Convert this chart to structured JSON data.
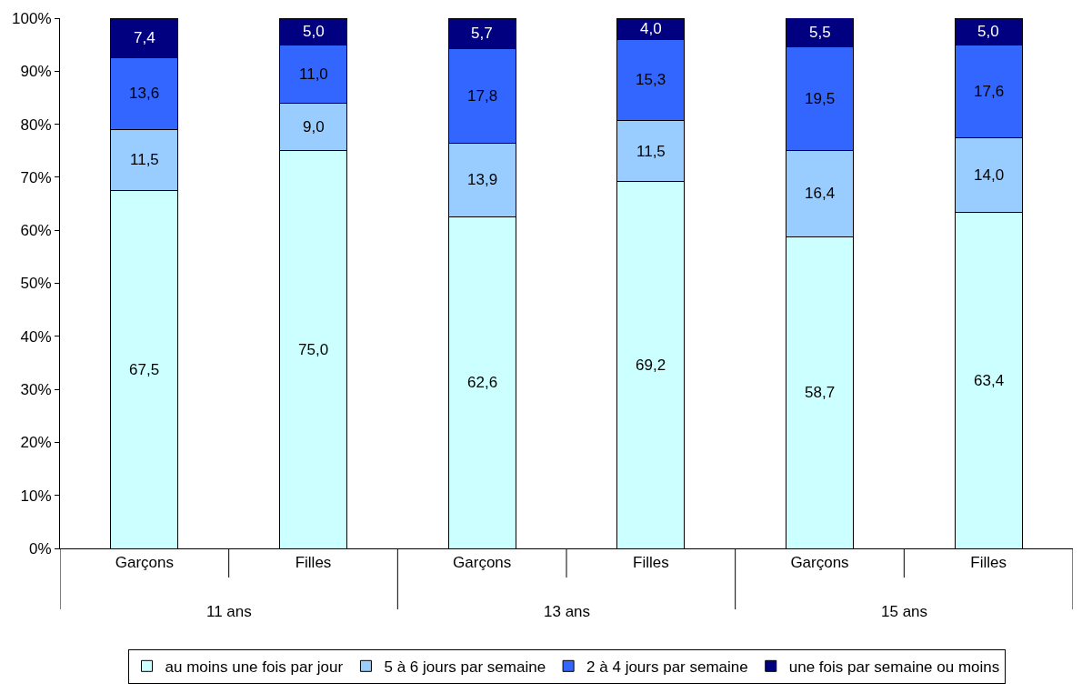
{
  "chart_data": {
    "type": "bar",
    "stacked": true,
    "categories": [
      "Garçons",
      "Filles",
      "Garçons",
      "Filles",
      "Garçons",
      "Filles"
    ],
    "series": [
      {
        "name": "au moins une fois par jour",
        "color": "#ccffff",
        "values": [
          67.5,
          75.0,
          62.6,
          69.2,
          58.7,
          63.4
        ],
        "value_labels": [
          "67,5",
          "75,0",
          "62,6",
          "69,2",
          "58,7",
          "63,4"
        ]
      },
      {
        "name": "5 à 6 jours par semaine",
        "color": "#99ccff",
        "values": [
          11.5,
          9.0,
          13.9,
          11.5,
          16.4,
          14.0
        ],
        "value_labels": [
          "11,5",
          "9,0",
          "13,9",
          "11,5",
          "16,4",
          "14,0"
        ]
      },
      {
        "name": "2 à 4 jours par semaine",
        "color": "#3366ff",
        "values": [
          13.6,
          11.0,
          17.8,
          15.3,
          19.5,
          17.6
        ],
        "value_labels": [
          "13,6",
          "11,0",
          "17,8",
          "15,3",
          "19,5",
          "17,6"
        ]
      },
      {
        "name": "une fois par semaine ou moins",
        "color": "#000080",
        "values": [
          7.4,
          5.0,
          5.7,
          4.0,
          5.5,
          5.0
        ],
        "value_labels": [
          "7,4",
          "5,0",
          "5,7",
          "4,0",
          "5,5",
          "5,0"
        ]
      }
    ],
    "annotations": [
      "11 ans",
      "13 ans",
      "15 ans"
    ],
    "ylim": [
      0,
      100
    ],
    "yticks": [
      {
        "value": 0,
        "label": "0%"
      },
      {
        "value": 10,
        "label": "10%"
      },
      {
        "value": 20,
        "label": "20%"
      },
      {
        "value": 30,
        "label": "30%"
      },
      {
        "value": 40,
        "label": "40%"
      },
      {
        "value": 50,
        "label": "50%"
      },
      {
        "value": 60,
        "label": "60%"
      },
      {
        "value": 70,
        "label": "70%"
      },
      {
        "value": 80,
        "label": "80%"
      },
      {
        "value": 90,
        "label": "90%"
      },
      {
        "value": 100,
        "label": "100%"
      }
    ],
    "grid": false,
    "legend": "bottom"
  }
}
